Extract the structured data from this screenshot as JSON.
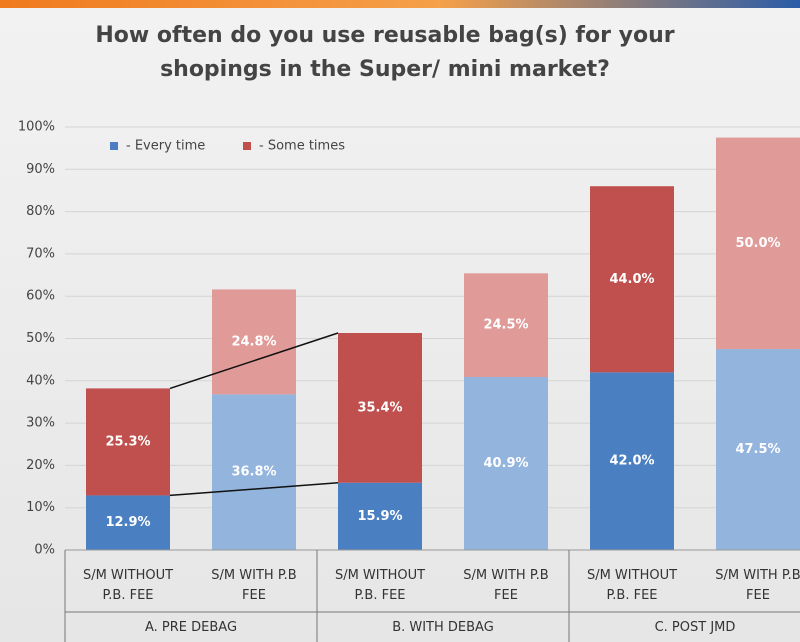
{
  "chart_data": {
    "type": "stacked_bar",
    "title": "How often do you use reusable bag(s) for your shopings in the Super/ mini market?",
    "categories": [
      "S/M WITHOUT P.B. FEE",
      "S/M WITH P.B FEE",
      "S/M WITHOUT P.B. FEE",
      "S/M WITH P.B FEE",
      "S/M WITHOUT P.B. FEE",
      "S/M WITH P.B FEE"
    ],
    "group_labels": [
      "A. PRE DEBAG",
      "B. WITH DEBAG",
      "C. POST JMD"
    ],
    "series": [
      {
        "name": "- Every time",
        "color": "#4a7fc1",
        "colors": [
          "#4a7fc1",
          "#93b4dd",
          "#4a7fc1",
          "#93b4dd",
          "#4a7fc1",
          "#93b4dd"
        ],
        "values": [
          12.9,
          36.8,
          15.9,
          40.9,
          42.0,
          47.5
        ],
        "value_labels": [
          "12.9%",
          "36.8%",
          "15.9%",
          "40.9%",
          "42.0%",
          "47.5%"
        ]
      },
      {
        "name": "- Some times",
        "color": "#c0504d",
        "colors": [
          "#c0504d",
          "#e09a98",
          "#c0504d",
          "#e09a98",
          "#c0504d",
          "#e09a98"
        ],
        "values": [
          25.3,
          24.8,
          35.4,
          24.5,
          44.0,
          50.0
        ],
        "value_labels": [
          "25.3%",
          "24.8%",
          "35.4%",
          "24.5%",
          "44.0%",
          "50.0%"
        ]
      }
    ],
    "ylim": [
      0,
      100
    ],
    "yticks": [
      {
        "value": 0,
        "label": "0%"
      },
      {
        "value": 10,
        "label": "10%"
      },
      {
        "value": 20,
        "label": "20%"
      },
      {
        "value": 30,
        "label": "30%"
      },
      {
        "value": 40,
        "label": "40%"
      },
      {
        "value": 50,
        "label": "50%"
      },
      {
        "value": 60,
        "label": "60%"
      },
      {
        "value": 70,
        "label": "70%"
      },
      {
        "value": 80,
        "label": "80%"
      },
      {
        "value": 90,
        "label": "90%"
      },
      {
        "value": 100,
        "label": "100%"
      }
    ],
    "grid": true,
    "legend": "top-left"
  }
}
